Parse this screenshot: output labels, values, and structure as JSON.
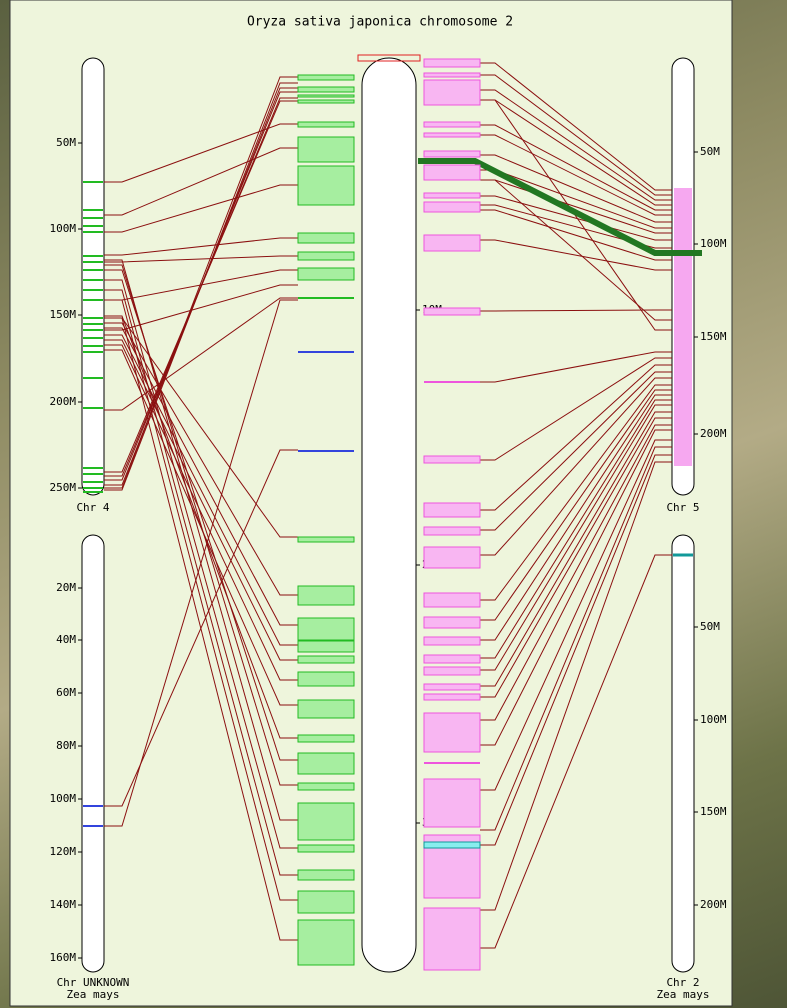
{
  "title": "Oryza sativa japonica chromosome 2",
  "left_top": {
    "label": "Chr 4",
    "ticks": [
      "50M",
      "100M",
      "150M",
      "200M",
      "250M"
    ]
  },
  "left_bottom": {
    "label": "Chr UNKNOWN",
    "species": "Zea mays",
    "ticks": [
      "20M",
      "40M",
      "60M",
      "80M",
      "100M",
      "120M",
      "140M",
      "160M"
    ]
  },
  "center": {
    "ticks": [
      "10M",
      "20M",
      "30M"
    ]
  },
  "right_top": {
    "label": "Chr 5",
    "ticks": [
      "50M",
      "100M",
      "150M",
      "200M"
    ]
  },
  "right_bottom": {
    "label": "Chr 2",
    "species": "Zea mays",
    "ticks": [
      "50M",
      "100M",
      "150M",
      "200M"
    ]
  }
}
